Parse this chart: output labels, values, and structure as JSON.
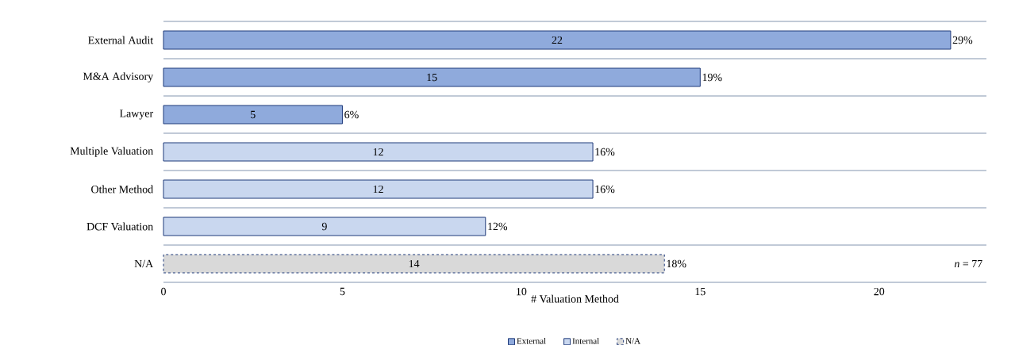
{
  "chart_data": {
    "type": "bar",
    "orientation": "horizontal",
    "xlabel": "# Valuation Method",
    "categories": [
      "External Audit",
      "M&A Advisory",
      "Lawyer",
      "Multiple Valuation",
      "Other Method",
      "DCF Valuation",
      "N/A"
    ],
    "series": [
      {
        "name": "External",
        "color": "#8faadc",
        "values": [
          22,
          15,
          5,
          null,
          null,
          null,
          null
        ],
        "value_labels": [
          "22",
          "15",
          "5",
          null,
          null,
          null,
          null
        ]
      },
      {
        "name": "Internal",
        "color": "#c9d7ef",
        "values": [
          null,
          null,
          null,
          12,
          12,
          9,
          null
        ],
        "value_labels": [
          null,
          null,
          null,
          "12",
          "12",
          "9",
          null
        ]
      },
      {
        "name": "N/A",
        "color": "#d9d9d9",
        "line_style": "dashed",
        "values": [
          null,
          null,
          null,
          null,
          null,
          null,
          14
        ],
        "value_labels": [
          null,
          null,
          null,
          null,
          null,
          null,
          "14"
        ]
      }
    ],
    "xlim": [
      0,
      23
    ],
    "xticks": [
      0,
      5,
      10,
      15,
      20
    ],
    "grid": "y",
    "legend": "bottom",
    "annotations": [
      {
        "text": "29%",
        "x": 22,
        "y": "External Audit"
      },
      {
        "text": "19%",
        "x": 15,
        "y": "M&A Advisory"
      },
      {
        "text": "6%",
        "x": 5,
        "y": "Lawyer"
      },
      {
        "text": "16%",
        "x": 12,
        "y": "Multiple Valuation"
      },
      {
        "text": "16%",
        "x": 12,
        "y": "Other Method"
      },
      {
        "text": "12%",
        "x": 9,
        "y": "DCF Valuation"
      },
      {
        "text": "18%",
        "x": 14,
        "y": "N/A"
      },
      "*n* = 77"
    ]
  }
}
